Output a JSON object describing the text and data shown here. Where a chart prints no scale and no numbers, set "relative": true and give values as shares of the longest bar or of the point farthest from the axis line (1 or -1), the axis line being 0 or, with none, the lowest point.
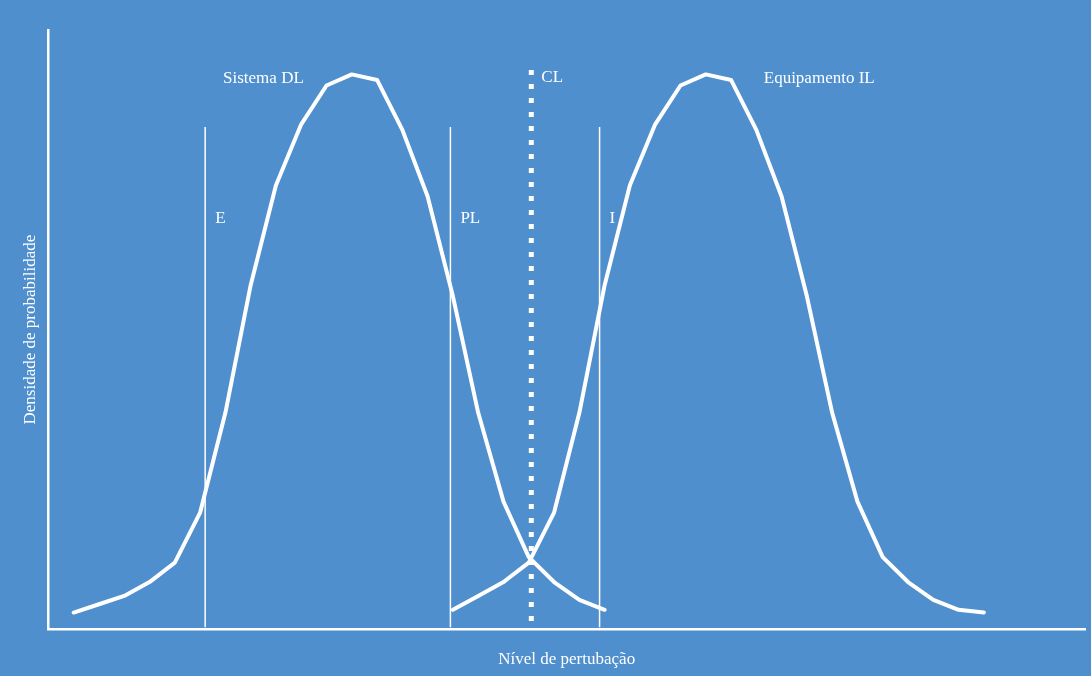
{
  "chart_data": {
    "type": "line",
    "relative": true,
    "xlabel": "Nível de pertubação",
    "ylabel": "Densidade de probabilidade",
    "grid": false,
    "legend": false,
    "marker": "none",
    "line_style": "solid",
    "categories": [
      null,
      null,
      null,
      null,
      null,
      null,
      null,
      null,
      null,
      null,
      null,
      null,
      null,
      null,
      null,
      null,
      null,
      null,
      null,
      null,
      null,
      null,
      null,
      null,
      null,
      null,
      null,
      null,
      null,
      null,
      null,
      null,
      null,
      null,
      null,
      null,
      null,
      null,
      null,
      null,
      null,
      null
    ],
    "series": [
      {
        "name": "Sistema DL",
        "color": "#ffffff",
        "values": [
          null,
          0.03,
          0.045,
          0.06,
          0.085,
          0.12,
          0.21,
          0.39,
          0.62,
          0.8,
          0.91,
          0.98,
          1,
          0.99,
          0.9,
          0.78,
          0.6,
          0.39,
          0.23,
          0.13,
          0.085,
          0.053,
          0.035,
          null,
          null,
          null,
          null,
          null,
          null,
          null,
          null,
          null,
          null,
          null,
          null,
          null,
          null,
          null,
          null,
          null,
          null,
          null
        ]
      },
      {
        "name": "Equipamento IL",
        "color": "#ffffff",
        "values": [
          null,
          null,
          null,
          null,
          null,
          null,
          null,
          null,
          null,
          null,
          null,
          null,
          null,
          null,
          null,
          null,
          0.035,
          0.06,
          0.085,
          0.12,
          0.21,
          0.39,
          0.62,
          0.8,
          0.91,
          0.98,
          1,
          0.99,
          0.9,
          0.78,
          0.6,
          0.39,
          0.23,
          0.13,
          0.085,
          0.053,
          0.035,
          0.03,
          null,
          null,
          null,
          null
        ]
      }
    ],
    "annotations": [
      "E",
      "PL",
      "CL",
      "I"
    ]
  }
}
